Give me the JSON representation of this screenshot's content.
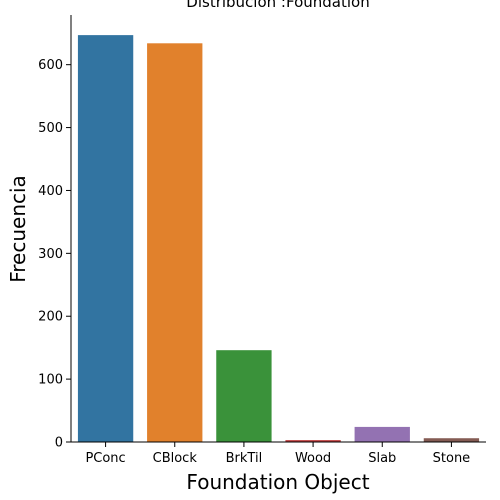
{
  "chart_data": {
    "type": "bar",
    "title": "Distribucion :Foundation",
    "xlabel": "Foundation Object",
    "ylabel": "Frecuencia",
    "categories": [
      "PConc",
      "CBlock",
      "BrkTil",
      "Wood",
      "Slab",
      "Stone"
    ],
    "values": [
      647,
      634,
      146,
      3,
      24,
      6
    ],
    "colors": [
      "#3274a1",
      "#e1812c",
      "#3a923a",
      "#c03d3e",
      "#9372b2",
      "#845b53"
    ],
    "ylim": [
      0,
      679
    ],
    "yticks": [
      0,
      100,
      200,
      300,
      400,
      500,
      600
    ],
    "grid": false,
    "legend": "none"
  }
}
